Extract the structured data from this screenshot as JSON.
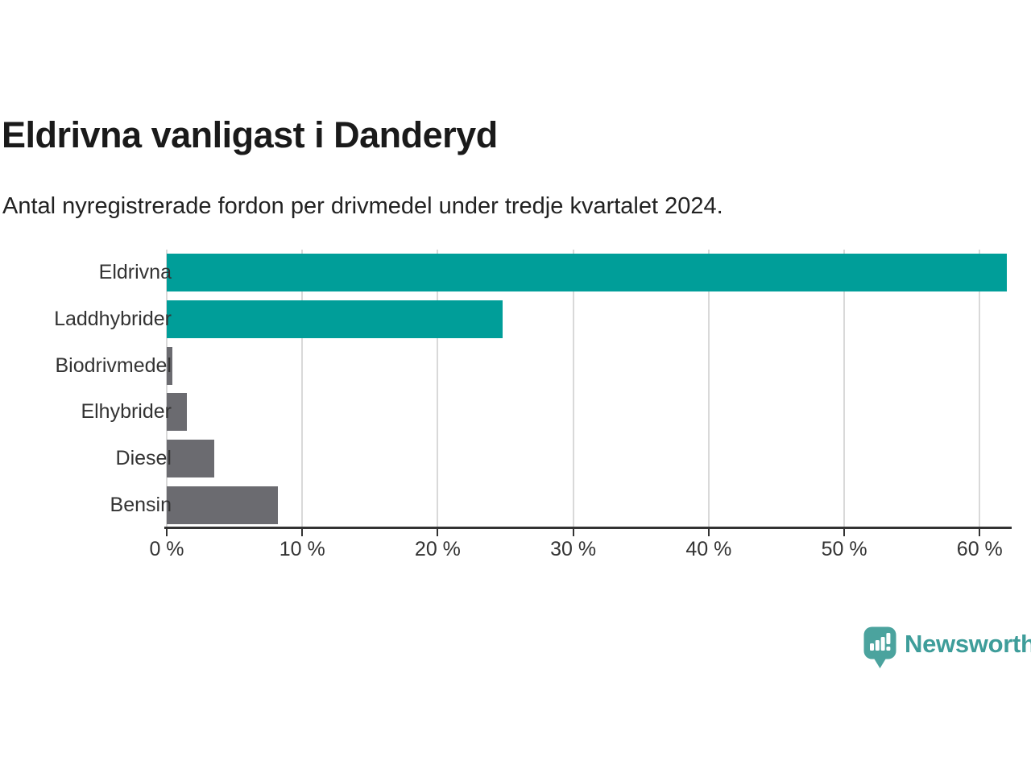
{
  "chart_data": {
    "type": "bar",
    "orientation": "horizontal",
    "title": "Eldrivna vanligast i Danderyd",
    "subtitle": "Antal nyregistrerade fordon per drivmedel under tredje kvartalet 2024.",
    "categories": [
      "Eldrivna",
      "Laddhybrider",
      "Biodrivmedel",
      "Elhybrider",
      "Diesel",
      "Bensin"
    ],
    "values": [
      62,
      24.8,
      0.4,
      1.5,
      3.5,
      8.2
    ],
    "unit": "%",
    "bar_colors": [
      "#009E99",
      "#009E99",
      "#6B6B70",
      "#6B6B70",
      "#6B6B70",
      "#6B6B70"
    ],
    "accent_color": "#009E99",
    "muted_color": "#6B6B70",
    "xlim": [
      0,
      62.3
    ],
    "x_ticks": [
      0,
      10,
      20,
      30,
      40,
      50,
      60
    ],
    "x_tick_suffix": " %",
    "xlabel": "",
    "ylabel": "",
    "grid": "vertical-only",
    "gridline_color": "#D9D9D9",
    "axis_color": "#333333",
    "legend": "none"
  },
  "footer": {
    "brand": "Newsworthy",
    "brand_color": "#3E9D9A",
    "logo_color": "#4BA39E",
    "logo_icon": "newsworthy-speech-bubble-bars-icon"
  }
}
